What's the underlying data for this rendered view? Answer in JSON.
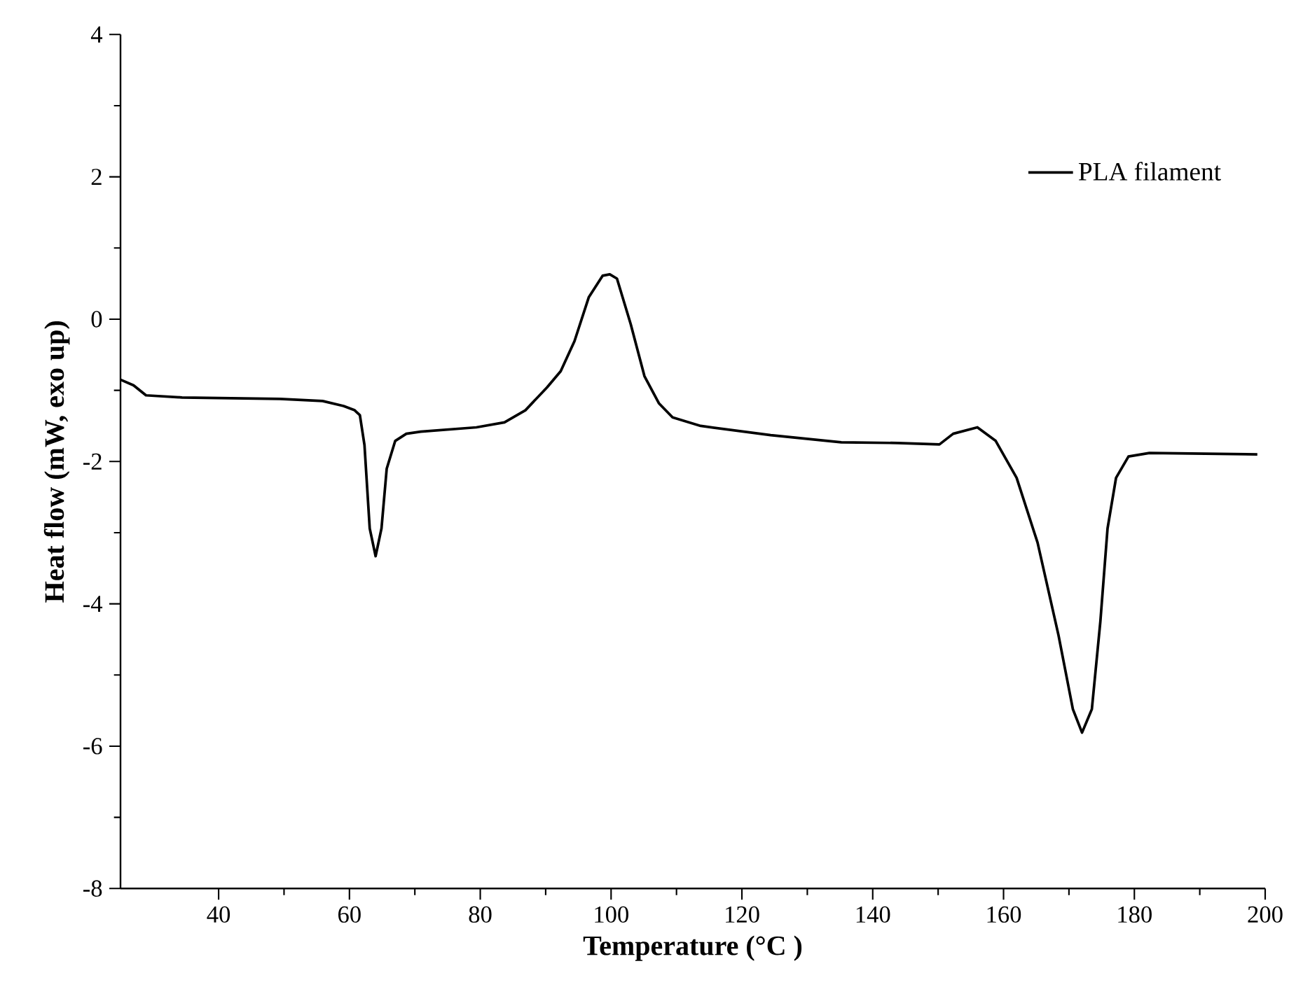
{
  "chart_data": {
    "type": "line",
    "xlabel": "Temperature (°C )",
    "ylabel": "Heat flow (mW, exo up)",
    "xlim": [
      25,
      200
    ],
    "ylim": [
      -8,
      4
    ],
    "xticks": [
      40,
      60,
      80,
      100,
      120,
      140,
      160,
      180,
      200
    ],
    "yticks": [
      -8,
      -6,
      -4,
      -2,
      0,
      2,
      4
    ],
    "legend": "top right",
    "grid": false,
    "marker": "none",
    "line_style": "solid",
    "series": [
      {
        "name": "PLA filament",
        "color": "#000000",
        "x": [
          25,
          27,
          28.9,
          34.4,
          49.4,
          55.9,
          59.1,
          60.8,
          61.6,
          62.3,
          63.1,
          64.0,
          64.9,
          65.7,
          67.0,
          68.7,
          70.9,
          79.4,
          83.7,
          86.9,
          90.2,
          92.3,
          94.4,
          96.6,
          98.7,
          99.8,
          100.9,
          103,
          105.1,
          107.3,
          109.4,
          113.7,
          124.4,
          135.2,
          143.8,
          150.2,
          152.3,
          156,
          158.8,
          162,
          165.2,
          168.4,
          170.6,
          172.0,
          173.5,
          174.8,
          175.9,
          177.2,
          179.1,
          182.3,
          198.8
        ],
        "values": [
          -0.85,
          -0.93,
          -1.07,
          -1.1,
          -1.12,
          -1.15,
          -1.22,
          -1.28,
          -1.35,
          -1.77,
          -2.94,
          -3.33,
          -2.94,
          -2.1,
          -1.71,
          -1.61,
          -1.58,
          -1.52,
          -1.45,
          -1.28,
          -0.96,
          -0.73,
          -0.31,
          0.31,
          0.61,
          0.63,
          0.57,
          -0.07,
          -0.8,
          -1.18,
          -1.38,
          -1.5,
          -1.63,
          -1.73,
          -1.74,
          -1.76,
          -1.61,
          -1.52,
          -1.71,
          -2.23,
          -3.14,
          -4.44,
          -5.48,
          -5.81,
          -5.48,
          -4.25,
          -2.94,
          -2.23,
          -1.93,
          -1.88,
          -1.9
        ]
      }
    ]
  }
}
